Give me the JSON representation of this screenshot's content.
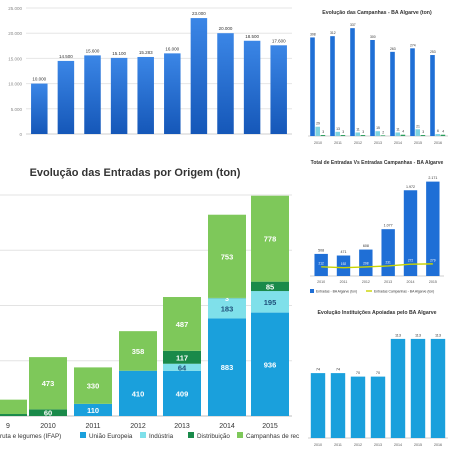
{
  "chart_data": [
    {
      "id": "top_left",
      "type": "bar",
      "title": "",
      "categories": [
        "",
        "",
        "",
        "",
        "",
        "",
        "",
        "",
        "",
        ""
      ],
      "values": [
        10000,
        14500,
        15600,
        15100,
        15283,
        16000,
        23000,
        20000,
        18500,
        17600
      ],
      "value_labels": [
        "10.000",
        "14.500",
        "15.600",
        "15.100",
        "15.283",
        "16.000",
        "23.000",
        "20.000",
        "18.500",
        "17.600"
      ],
      "yticks": [
        "25.000",
        "20.000",
        "15.000",
        "10.000",
        "5.000",
        "0"
      ],
      "ylim": [
        0,
        25000
      ],
      "color": "#1f6fd6",
      "grid": true
    },
    {
      "id": "top_right",
      "type": "bar",
      "title": "Evolução das Campanhas - BA Algarve (ton)",
      "categories": [
        "2010",
        "2011",
        "2012",
        "2013",
        "2014",
        "2015",
        "2016"
      ],
      "series": [
        {
          "values": [
            308,
            312,
            337,
            300,
            263,
            274,
            253
          ],
          "color": "#1f6fd6"
        },
        {
          "values": [
            29,
            13,
            11,
            15,
            11,
            21,
            6
          ],
          "color": "#7fd3e0"
        },
        {
          "values": [
            3,
            3,
            3,
            2,
            4,
            3,
            4
          ],
          "color": "#2a9d5c"
        }
      ],
      "value_labels": [
        [
          "308",
          "312",
          "337",
          "300",
          "263",
          "274",
          "253"
        ],
        [
          "29",
          "13",
          "11",
          "15",
          "11",
          "21",
          "6"
        ],
        [
          "3",
          "3",
          "3",
          "2",
          "4",
          "3",
          "4"
        ]
      ],
      "ylim": [
        0,
        350
      ]
    },
    {
      "id": "main",
      "type": "bar",
      "stacked": true,
      "title": "Evolução das Entradas por Origem (ton)",
      "categories": [
        "9",
        "2010",
        "2011",
        "2012",
        "2013",
        "2014",
        "2015"
      ],
      "series": [
        {
          "name": "Fruta e legumes (IFAP)",
          "values": [
            0,
            0,
            0,
            0,
            0,
            0,
            0
          ],
          "color": "#1f5a96"
        },
        {
          "name": "União Europeia",
          "values": [
            0,
            0,
            110,
            410,
            409,
            883,
            936
          ],
          "color": "#1aa0dc"
        },
        {
          "name": "Indústria",
          "values": [
            0,
            0,
            0,
            0,
            64,
            183,
            195
          ],
          "color": "#7fe0ea"
        },
        {
          "name": "Distribuição",
          "values": [
            18,
            60,
            0,
            0,
            117,
            3,
            85
          ],
          "color": "#1a8a4a"
        },
        {
          "name": "Campanhas de recolha",
          "values": [
            130,
            473,
            330,
            358,
            487,
            753,
            778
          ],
          "color": "#7ec85a"
        }
      ],
      "value_labels": [
        [
          "",
          "",
          "",
          "",
          "",
          "",
          ""
        ],
        [
          "",
          "",
          "110",
          "410",
          "409",
          "883",
          "936"
        ],
        [
          "",
          "",
          "",
          "",
          "64",
          "183",
          "195"
        ],
        [
          "",
          "60",
          "",
          "",
          "117",
          "3",
          "85"
        ],
        [
          "",
          "473",
          "330",
          "358",
          "487",
          "753",
          "778"
        ]
      ],
      "legend": [
        "ruta e legumes (IFAP)",
        "União Europeia",
        "Indústria",
        "Distribuição",
        "Campanhas de rec"
      ],
      "ylim": [
        0,
        2100
      ],
      "grid": true
    },
    {
      "id": "mid_right",
      "type": "bar",
      "title": "Total de Entradas Vs Entradas Campanhas - BA Algarve",
      "categories": [
        "2010",
        "2011",
        "2012",
        "2013",
        "2014",
        "2015"
      ],
      "series": [
        {
          "name": "Entradas - BA Algarve (ton)",
          "values": [
            508,
            471,
            608,
            1077,
            1972,
            2171
          ],
          "color": "#1f6fd6"
        },
        {
          "name": "Entradas Campanhas - BA Algarve (ton)",
          "values": [
            212,
            192,
            208,
            231,
            272,
            279
          ],
          "color": "#c9d400"
        }
      ],
      "value_labels": [
        [
          "508",
          "471",
          "608",
          "1.077",
          "1.972",
          "2.171"
        ],
        [
          "212",
          "192",
          "208",
          "231",
          "272",
          "279"
        ]
      ],
      "legend": [
        "Entradas - BA Algarve (ton)",
        "Entradas Campanhas - BA Algarve (ton)"
      ],
      "ylim": [
        0,
        2300
      ]
    },
    {
      "id": "bottom_right",
      "type": "bar",
      "title": "Evolução Instituições Apoiadas pelo BA Algarve",
      "categories": [
        "2010",
        "2011",
        "2012",
        "2013",
        "2014",
        "2015",
        "2016"
      ],
      "values": [
        74,
        74,
        70,
        70,
        113,
        113,
        113
      ],
      "value_labels": [
        "74",
        "74",
        "70",
        "70",
        "113",
        "113",
        "113"
      ],
      "ylim": [
        0,
        130
      ],
      "color": "#1aa0dc"
    }
  ]
}
